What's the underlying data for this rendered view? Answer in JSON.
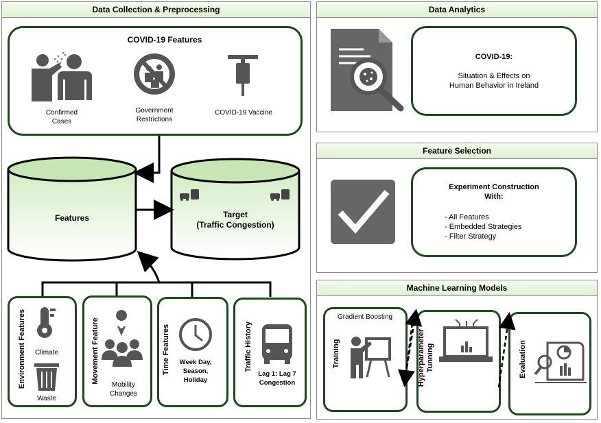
{
  "panels": {
    "collection": "Data Collection & Preprocessing",
    "analytics": "Data Analytics",
    "selection": "Feature Selection",
    "models": "Machine Learning Models"
  },
  "covid": {
    "title": "COVID-19 Features",
    "confirmed": "Confirmed Cases",
    "restrictions": "Government Restrictions",
    "vaccine": "COVID-19 Vaccine"
  },
  "cylinders": {
    "features": "Features",
    "target_line1": "Target",
    "target_line2": "(Traffic Congestion)"
  },
  "groups": {
    "environment": {
      "title": "Environment Features",
      "item1": "Climate",
      "item2": "Waste"
    },
    "movement": {
      "title": "Movement Feature",
      "item1": "Mobility",
      "item2": "Changes"
    },
    "time": {
      "title": "Time Features",
      "line1": "Week Day,",
      "line2": "Season,",
      "line3": "Holiday"
    },
    "traffic": {
      "title": "Traffic History",
      "line1": "Lag 1: Lag 7",
      "line2": "Congestion"
    }
  },
  "analytics": {
    "title": "COVID-19:",
    "line1": "Situation & Effects on",
    "line2": "Human Behavior in Ireland"
  },
  "selection": {
    "title_line1": "Experiment Construction",
    "title_line2": "With:",
    "items": [
      "- All Features",
      "- Embedded Strategies",
      "- Filter Strategy"
    ]
  },
  "models": {
    "gradient": "Gradient Boosting",
    "training": "Training",
    "tuning_line1": "Hyperparameter",
    "tuning_line2": "Tunning",
    "evaluation": "Evaluation"
  },
  "colors": {
    "border": "#1b4a1b",
    "header": "#dff0d3",
    "icon": "#555555"
  }
}
